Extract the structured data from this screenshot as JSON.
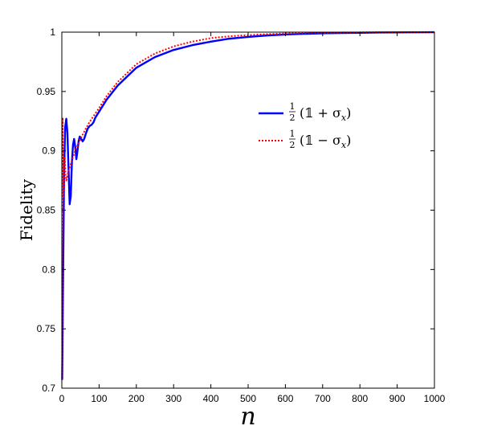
{
  "chart_data": {
    "type": "line",
    "xlabel": "n",
    "ylabel": "Fidelity",
    "xlim": [
      0,
      1000
    ],
    "ylim": [
      0.7,
      1.0
    ],
    "x_ticks": [
      0,
      100,
      200,
      300,
      400,
      500,
      600,
      700,
      800,
      900,
      1000
    ],
    "y_ticks": [
      0.7,
      0.75,
      0.8,
      0.85,
      0.9,
      0.95,
      1
    ],
    "y_tick_labels": [
      "0.7",
      "0.75",
      "0.8",
      "0.85",
      "0.9",
      "0.95",
      "1"
    ],
    "grid": false,
    "legend_position": "top-right",
    "series": [
      {
        "name": "½ (𝟙 + σ_x)",
        "legend_num": "1",
        "legend_den": "2",
        "legend_expr": "(𝟙 + σ",
        "legend_sub": "x",
        "legend_close": ")",
        "color": "#0000ff",
        "style": "solid",
        "x": [
          1,
          3,
          6,
          9,
          12,
          15,
          18,
          21,
          24,
          27,
          30,
          33,
          36,
          39,
          42,
          45,
          48,
          52,
          56,
          60,
          65,
          70,
          75,
          80,
          85,
          90,
          100,
          120,
          150,
          200,
          250,
          300,
          350,
          400,
          450,
          500,
          550,
          600,
          650,
          700,
          750,
          800,
          850,
          900,
          950,
          1000
        ],
        "y": [
          0.707,
          0.78,
          0.88,
          0.92,
          0.927,
          0.915,
          0.885,
          0.855,
          0.862,
          0.89,
          0.905,
          0.91,
          0.903,
          0.893,
          0.9,
          0.908,
          0.912,
          0.91,
          0.908,
          0.91,
          0.915,
          0.919,
          0.921,
          0.922,
          0.924,
          0.928,
          0.933,
          0.943,
          0.955,
          0.97,
          0.979,
          0.985,
          0.989,
          0.992,
          0.9945,
          0.996,
          0.9972,
          0.998,
          0.9986,
          0.999,
          0.9993,
          0.9995,
          0.9997,
          0.9998,
          0.9999,
          0.99995
        ]
      },
      {
        "name": "½ (𝟙 − σ_x)",
        "legend_num": "1",
        "legend_den": "2",
        "legend_expr": "(𝟙 − σ",
        "legend_sub": "x",
        "legend_close": ")",
        "color": "#ff0000",
        "style": "dotted",
        "x": [
          1,
          2,
          4,
          6,
          8,
          10,
          12,
          14,
          17,
          20,
          25,
          30,
          40,
          50,
          60,
          70,
          80,
          100,
          120,
          150,
          200,
          250,
          300,
          350,
          400,
          450,
          500,
          550,
          600,
          650,
          700,
          750,
          800,
          850,
          900,
          950,
          1000
        ],
        "y": [
          0.707,
          0.928,
          0.86,
          0.87,
          0.895,
          0.88,
          0.875,
          0.878,
          0.882,
          0.885,
          0.89,
          0.895,
          0.903,
          0.91,
          0.916,
          0.922,
          0.927,
          0.936,
          0.946,
          0.958,
          0.973,
          0.982,
          0.988,
          0.992,
          0.995,
          0.9965,
          0.9975,
          0.9983,
          0.9989,
          0.9993,
          0.9995,
          0.9997,
          0.9998,
          0.9999,
          0.99995,
          0.99998,
          1.0
        ]
      }
    ]
  }
}
